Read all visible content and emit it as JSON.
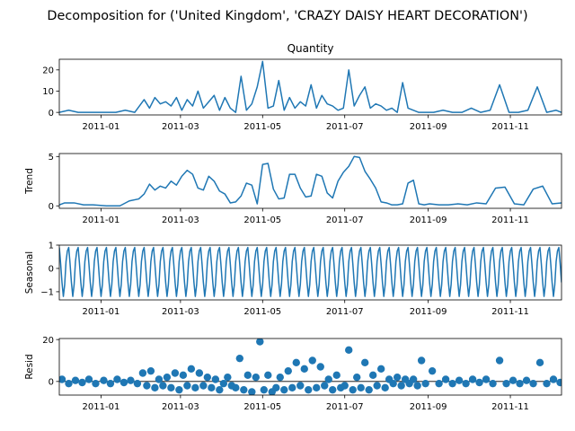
{
  "figure": {
    "suptitle": "Decomposition for ('United Kingdom', 'CRAZY DAISY HEART DECORATION')"
  },
  "colors": {
    "line": "#1f77b4",
    "axis": "#000000"
  },
  "chart_data": [
    {
      "type": "line",
      "title": "Quantity",
      "ylabel": "",
      "x_ticks": [
        "2011-01",
        "2011-03",
        "2011-05",
        "2011-07",
        "2011-09",
        "2011-11"
      ],
      "xlim": [
        "2010-12-01",
        "2011-12-09"
      ],
      "ylim": [
        -1.2,
        25
      ],
      "y_ticks": [
        0,
        10,
        20
      ],
      "series": [
        {
          "x": [
            "2010-12-01",
            "2010-12-08",
            "2010-12-15",
            "2010-12-22",
            "2011-01-05",
            "2011-01-12",
            "2011-01-19",
            "2011-01-26",
            "2011-02-02",
            "2011-02-06",
            "2011-02-10",
            "2011-02-14",
            "2011-02-18",
            "2011-02-22",
            "2011-02-26",
            "2011-03-02",
            "2011-03-06",
            "2011-03-10",
            "2011-03-14",
            "2011-03-18",
            "2011-03-22",
            "2011-03-26",
            "2011-03-30",
            "2011-04-03",
            "2011-04-07",
            "2011-04-11",
            "2011-04-15",
            "2011-04-19",
            "2011-04-23",
            "2011-04-27",
            "2011-05-01",
            "2011-05-05",
            "2011-05-09",
            "2011-05-13",
            "2011-05-17",
            "2011-05-21",
            "2011-05-25",
            "2011-05-29",
            "2011-06-02",
            "2011-06-06",
            "2011-06-10",
            "2011-06-14",
            "2011-06-18",
            "2011-06-22",
            "2011-06-26",
            "2011-06-30",
            "2011-07-04",
            "2011-07-08",
            "2011-07-12",
            "2011-07-16",
            "2011-07-20",
            "2011-07-24",
            "2011-07-28",
            "2011-08-01",
            "2011-08-05",
            "2011-08-09",
            "2011-08-13",
            "2011-08-17",
            "2011-08-21",
            "2011-08-25",
            "2011-08-29",
            "2011-09-05",
            "2011-09-12",
            "2011-09-19",
            "2011-09-26",
            "2011-10-03",
            "2011-10-10",
            "2011-10-17",
            "2011-10-24",
            "2011-10-31",
            "2011-11-07",
            "2011-11-14",
            "2011-11-21",
            "2011-11-28",
            "2011-12-05",
            "2011-12-09"
          ],
          "values": [
            0,
            1,
            0,
            0,
            0,
            0,
            1,
            0,
            6,
            2,
            7,
            4,
            5,
            3,
            7,
            1,
            6,
            3,
            10,
            2,
            5,
            8,
            1,
            7,
            2,
            0,
            17,
            1,
            4,
            12,
            24,
            2,
            3,
            15,
            1,
            7,
            2,
            5,
            3,
            13,
            2,
            8,
            4,
            3,
            1,
            2,
            20,
            3,
            8,
            12,
            2,
            4,
            3,
            1,
            2,
            0,
            14,
            2,
            1,
            0,
            0,
            0,
            1,
            0,
            0,
            2,
            0,
            1,
            13,
            0,
            0,
            1,
            12,
            0,
            1,
            0
          ]
        }
      ]
    },
    {
      "type": "line",
      "title": "",
      "ylabel": "Trend",
      "x_ticks": [
        "2011-01",
        "2011-03",
        "2011-05",
        "2011-07",
        "2011-09",
        "2011-11"
      ],
      "xlim": [
        "2010-12-01",
        "2011-12-09"
      ],
      "ylim": [
        -0.25,
        5.3
      ],
      "y_ticks": [
        0,
        5
      ],
      "series": [
        {
          "x": [
            "2010-12-01",
            "2010-12-05",
            "2010-12-12",
            "2010-12-19",
            "2010-12-26",
            "2011-01-05",
            "2011-01-15",
            "2011-01-22",
            "2011-01-29",
            "2011-02-02",
            "2011-02-06",
            "2011-02-10",
            "2011-02-14",
            "2011-02-18",
            "2011-02-22",
            "2011-02-26",
            "2011-03-02",
            "2011-03-06",
            "2011-03-10",
            "2011-03-14",
            "2011-03-18",
            "2011-03-22",
            "2011-03-26",
            "2011-03-30",
            "2011-04-03",
            "2011-04-07",
            "2011-04-11",
            "2011-04-15",
            "2011-04-19",
            "2011-04-23",
            "2011-04-27",
            "2011-05-01",
            "2011-05-05",
            "2011-05-09",
            "2011-05-13",
            "2011-05-17",
            "2011-05-21",
            "2011-05-25",
            "2011-05-29",
            "2011-06-02",
            "2011-06-06",
            "2011-06-10",
            "2011-06-14",
            "2011-06-18",
            "2011-06-22",
            "2011-06-26",
            "2011-06-30",
            "2011-07-04",
            "2011-07-08",
            "2011-07-12",
            "2011-07-16",
            "2011-07-20",
            "2011-07-24",
            "2011-07-28",
            "2011-08-01",
            "2011-08-05",
            "2011-08-09",
            "2011-08-13",
            "2011-08-17",
            "2011-08-21",
            "2011-08-25",
            "2011-08-29",
            "2011-09-02",
            "2011-09-09",
            "2011-09-16",
            "2011-09-23",
            "2011-09-30",
            "2011-10-07",
            "2011-10-14",
            "2011-10-21",
            "2011-10-28",
            "2011-11-04",
            "2011-11-11",
            "2011-11-18",
            "2011-11-25",
            "2011-12-02",
            "2011-12-09"
          ],
          "values": [
            0.1,
            0.3,
            0.3,
            0.1,
            0.1,
            0,
            0,
            0.5,
            0.7,
            1.2,
            2.2,
            1.6,
            2.0,
            1.8,
            2.5,
            2.1,
            3.0,
            3.6,
            3.2,
            1.8,
            1.6,
            3.0,
            2.5,
            1.5,
            1.2,
            0.3,
            0.4,
            1.0,
            2.3,
            2.1,
            0.2,
            4.2,
            4.3,
            1.7,
            0.7,
            0.8,
            3.2,
            3.2,
            1.8,
            0.9,
            1.0,
            3.2,
            3.0,
            1.3,
            0.8,
            2.5,
            3.4,
            4.0,
            5.0,
            4.9,
            3.5,
            2.7,
            1.8,
            0.4,
            0.3,
            0.1,
            0.1,
            0.2,
            2.3,
            2.6,
            0.2,
            0.1,
            0.2,
            0.1,
            0.1,
            0.2,
            0.1,
            0.3,
            0.2,
            1.8,
            1.9,
            0.2,
            0.1,
            1.7,
            2.0,
            0.2,
            0.3
          ]
        }
      ]
    },
    {
      "type": "line",
      "title": "",
      "ylabel": "Seasonal",
      "x_ticks": [
        "2011-01",
        "2011-03",
        "2011-05",
        "2011-07",
        "2011-09",
        "2011-11"
      ],
      "xlim": [
        "2010-12-01",
        "2011-12-09"
      ],
      "ylim": [
        -1.35,
        1.0
      ],
      "y_ticks": [
        -1,
        0,
        1
      ],
      "series": [
        {
          "period_days": 7,
          "pattern": [
            0.9,
            0.2,
            -0.6,
            -1.2,
            -0.7,
            0.3,
            0.75
          ]
        }
      ]
    },
    {
      "type": "scatter",
      "title": "",
      "ylabel": "Resid",
      "x_ticks": [
        "2011-01",
        "2011-03",
        "2011-05",
        "2011-07",
        "2011-09",
        "2011-11"
      ],
      "xlim": [
        "2010-12-01",
        "2011-12-09"
      ],
      "ylim": [
        -6.5,
        20.5
      ],
      "y_ticks": [
        0,
        20
      ],
      "series": [
        {
          "x": [
            "2010-12-03",
            "2010-12-08",
            "2010-12-13",
            "2010-12-18",
            "2010-12-23",
            "2010-12-28",
            "2011-01-03",
            "2011-01-08",
            "2011-01-13",
            "2011-01-18",
            "2011-01-23",
            "2011-01-28",
            "2011-02-01",
            "2011-02-04",
            "2011-02-07",
            "2011-02-10",
            "2011-02-13",
            "2011-02-16",
            "2011-02-19",
            "2011-02-22",
            "2011-02-25",
            "2011-02-28",
            "2011-03-03",
            "2011-03-06",
            "2011-03-09",
            "2011-03-12",
            "2011-03-15",
            "2011-03-18",
            "2011-03-21",
            "2011-03-24",
            "2011-03-27",
            "2011-03-30",
            "2011-04-02",
            "2011-04-05",
            "2011-04-08",
            "2011-04-11",
            "2011-04-14",
            "2011-04-17",
            "2011-04-20",
            "2011-04-23",
            "2011-04-26",
            "2011-04-29",
            "2011-05-02",
            "2011-05-05",
            "2011-05-08",
            "2011-05-11",
            "2011-05-14",
            "2011-05-17",
            "2011-05-20",
            "2011-05-23",
            "2011-05-26",
            "2011-05-29",
            "2011-06-01",
            "2011-06-04",
            "2011-06-07",
            "2011-06-10",
            "2011-06-13",
            "2011-06-16",
            "2011-06-19",
            "2011-06-22",
            "2011-06-25",
            "2011-06-28",
            "2011-07-01",
            "2011-07-04",
            "2011-07-07",
            "2011-07-10",
            "2011-07-13",
            "2011-07-16",
            "2011-07-19",
            "2011-07-22",
            "2011-07-25",
            "2011-07-28",
            "2011-07-31",
            "2011-08-03",
            "2011-08-06",
            "2011-08-09",
            "2011-08-12",
            "2011-08-15",
            "2011-08-18",
            "2011-08-21",
            "2011-08-24",
            "2011-08-27",
            "2011-08-30",
            "2011-09-04",
            "2011-09-09",
            "2011-09-14",
            "2011-09-19",
            "2011-09-24",
            "2011-09-29",
            "2011-10-04",
            "2011-10-09",
            "2011-10-14",
            "2011-10-19",
            "2011-10-24",
            "2011-10-29",
            "2011-11-03",
            "2011-11-08",
            "2011-11-13",
            "2011-11-18",
            "2011-11-23",
            "2011-11-28",
            "2011-12-03",
            "2011-12-08"
          ],
          "values": [
            1,
            -1,
            0.5,
            -0.5,
            1,
            -1,
            0.5,
            -1,
            1,
            -0.5,
            0.5,
            -1,
            4,
            -2,
            5,
            -3,
            1,
            -2,
            2,
            -3,
            4,
            -4,
            3,
            -2,
            6,
            -3,
            4,
            -2,
            2,
            -3,
            1,
            -4,
            -1,
            2,
            -2,
            -3,
            11,
            -4,
            3,
            -5,
            2,
            19,
            -4,
            3,
            -5,
            -3,
            2,
            -4,
            5,
            -3,
            9,
            -2,
            6,
            -4,
            10,
            -3,
            7,
            -2,
            1,
            -4,
            3,
            -3,
            -2,
            15,
            -4,
            2,
            -3,
            9,
            -4,
            3,
            -2,
            6,
            -3,
            1,
            -1,
            2,
            -2,
            1,
            -1,
            1,
            -2,
            10,
            -1,
            5,
            -1,
            1,
            -1,
            0.5,
            -1,
            1,
            -0.5,
            1,
            -1,
            10,
            -1,
            0.5,
            -1,
            0.5,
            -1,
            9,
            -1,
            1,
            -0.5
          ]
        }
      ]
    }
  ]
}
